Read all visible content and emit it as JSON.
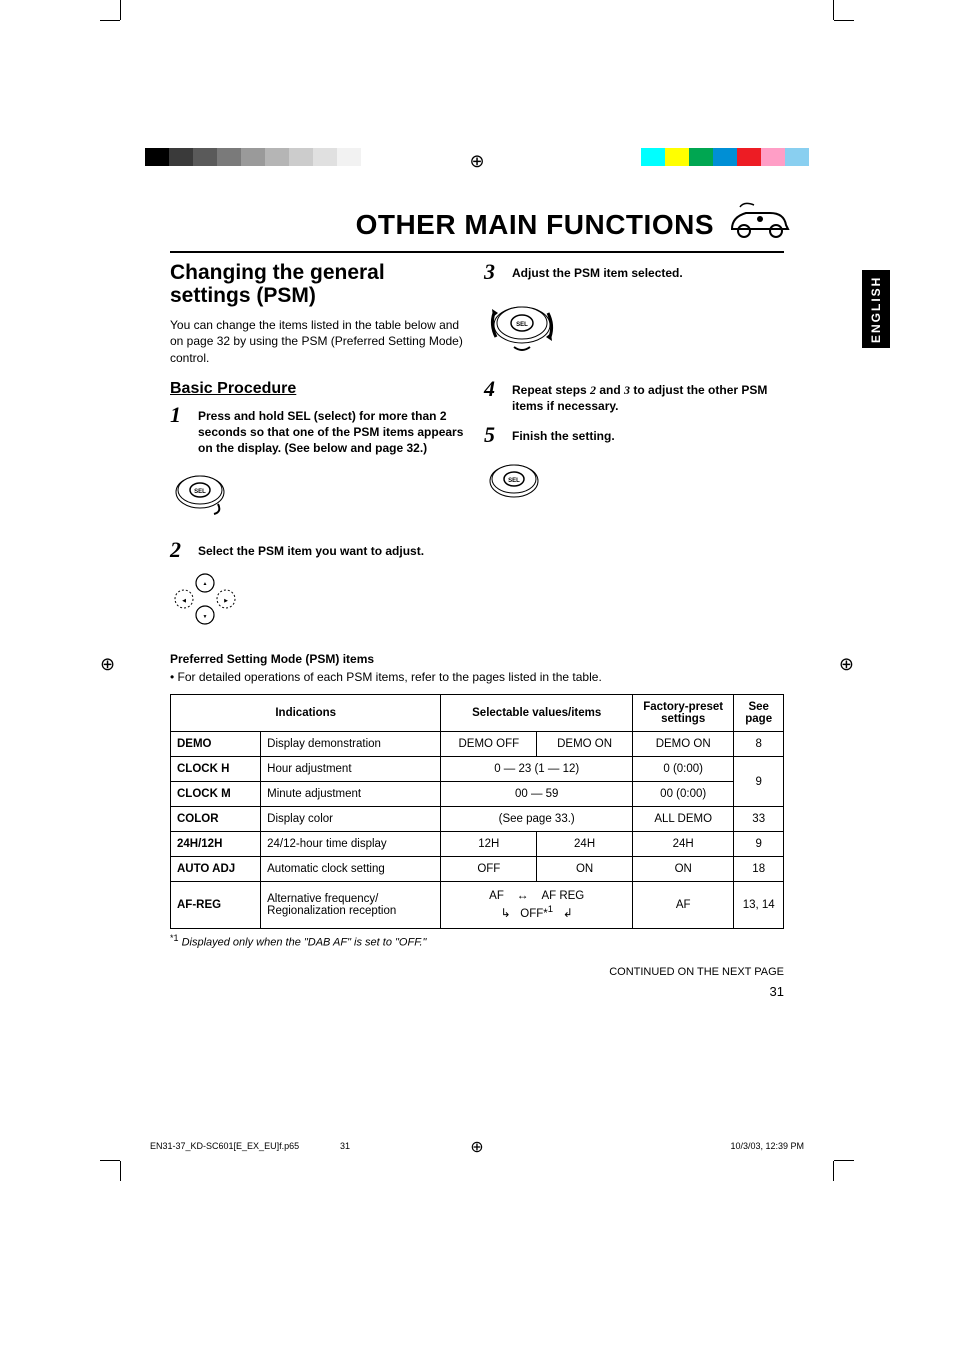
{
  "registration": {
    "left_swatches": [
      "#000000",
      "#3a3a3a",
      "#5a5a5a",
      "#7a7a7a",
      "#9a9a9a",
      "#b5b5b5",
      "#cccccc",
      "#e0e0e0",
      "#f2f2f2",
      "#ffffff"
    ],
    "right_swatches": [
      "#00ffff",
      "#ffff00",
      "#00a651",
      "#008fd5",
      "#ed1c24",
      "#ff9ec6",
      "#89cff0"
    ]
  },
  "lang_tab": "ENGLISH",
  "page_title": "OTHER MAIN FUNCTIONS",
  "section_title": "Changing the general settings (PSM)",
  "intro": "You can change the items listed in the table below and on page 32 by using the PSM (Preferred Setting Mode) control.",
  "sub_title": "Basic Procedure",
  "steps": {
    "s1": {
      "num": "1",
      "text": "Press and hold SEL (select) for more than 2 seconds so that one of the PSM items appears on the display. (See below and page 32.)"
    },
    "s2": {
      "num": "2",
      "text": "Select the PSM item you want to adjust."
    },
    "s3": {
      "num": "3",
      "text": "Adjust the PSM item selected."
    },
    "s4": {
      "num": "4",
      "text_pre": "Repeat steps ",
      "n2": "2",
      "mid": " and ",
      "n3": "3",
      "text_post": " to adjust the other PSM items if necessary."
    },
    "s5": {
      "num": "5",
      "text": "Finish the setting."
    }
  },
  "psm": {
    "heading": "Preferred Setting Mode (PSM) items",
    "note": "• For detailed operations of each PSM items, refer to the pages listed in the table."
  },
  "table": {
    "headers": {
      "indications": "Indications",
      "selectable": "Selectable values/items",
      "factory": "Factory-preset settings",
      "seepage": "See page"
    },
    "rows": {
      "demo": {
        "code": "DEMO",
        "desc": "Display demonstration",
        "sel1": "DEMO OFF",
        "sel2": "DEMO ON",
        "fact": "DEMO ON",
        "page": "8"
      },
      "clockh": {
        "code": "CLOCK H",
        "desc": "Hour adjustment",
        "sel": "0 — 23 (1 — 12)",
        "fact": "0 (0:00)"
      },
      "clockm": {
        "code": "CLOCK M",
        "desc": "Minute adjustment",
        "sel": "00 — 59",
        "fact": "00 (0:00)",
        "page": "9"
      },
      "color": {
        "code": "COLOR",
        "desc": "Display color",
        "sel": "(See page 33.)",
        "fact": "ALL DEMO",
        "page": "33"
      },
      "t2412": {
        "code": "24H/12H",
        "desc": "24/12-hour time display",
        "sel1": "12H",
        "sel2": "24H",
        "fact": "24H",
        "page": "9"
      },
      "autoadj": {
        "code": "AUTO ADJ",
        "desc": "Automatic clock setting",
        "sel1": "OFF",
        "sel2": "ON",
        "fact": "ON",
        "page": "18"
      },
      "afreg": {
        "code": "AF-REG",
        "desc": "Alternative frequency/ Regionalization reception",
        "af": "AF",
        "afreg": "AF REG",
        "off": "OFF*",
        "off_sup": "1",
        "fact": "AF",
        "page": "13, 14"
      }
    }
  },
  "footnote": {
    "marker": "*1",
    "text": "Displayed only when the \"DAB AF\" is set to \"OFF.\""
  },
  "continued": "CONTINUED ON THE NEXT PAGE",
  "pagenum": "31",
  "print_footer": {
    "file": "EN31-37_KD-SC601[E_EX_EU]f.p65",
    "page": "31",
    "stamp": "10/3/03, 12:39 PM"
  }
}
